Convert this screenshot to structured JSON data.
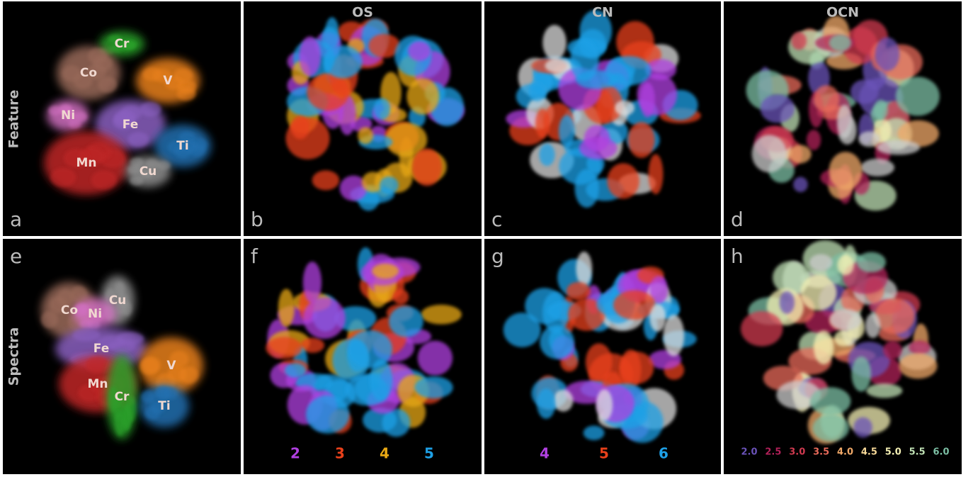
{
  "columns": [
    "OS",
    "CN",
    "OCN"
  ],
  "rows": [
    "Feature",
    "Spectra"
  ],
  "panels": [
    {
      "letter": "a",
      "labels": [
        "Cr",
        "Co",
        "V",
        "Ni",
        "Fe",
        "Ti",
        "Mn",
        "Cu"
      ]
    },
    {
      "letter": "b"
    },
    {
      "letter": "c"
    },
    {
      "letter": "d"
    },
    {
      "letter": "e",
      "labels": [
        "Cu",
        "Co",
        "Ni",
        "Fe",
        "V",
        "Mn",
        "Cr",
        "Ti"
      ]
    },
    {
      "letter": "f",
      "legend": [
        {
          "label": "2",
          "color": "#b040e0"
        },
        {
          "label": "3",
          "color": "#e8401a"
        },
        {
          "label": "4",
          "color": "#e8a814"
        },
        {
          "label": "5",
          "color": "#1ea0e6"
        }
      ]
    },
    {
      "letter": "g",
      "legend": [
        {
          "label": "4",
          "color": "#b040e0"
        },
        {
          "label": "5",
          "color": "#e8401a"
        },
        {
          "label": "6",
          "color": "#1ea0e6"
        }
      ]
    },
    {
      "letter": "h",
      "legend": [
        {
          "label": "2.0",
          "color": "#6a52b8"
        },
        {
          "label": "2.5",
          "color": "#b02058"
        },
        {
          "label": "3.0",
          "color": "#d03a50"
        },
        {
          "label": "3.5",
          "color": "#e86a5a"
        },
        {
          "label": "4.0",
          "color": "#f0a868"
        },
        {
          "label": "4.5",
          "color": "#f6d898"
        },
        {
          "label": "5.0",
          "color": "#f4f0b4"
        },
        {
          "label": "5.5",
          "color": "#bfe0b4"
        },
        {
          "label": "6.0",
          "color": "#7cbfa4"
        }
      ]
    }
  ]
}
